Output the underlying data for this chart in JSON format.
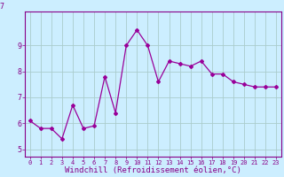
{
  "x": [
    0,
    1,
    2,
    3,
    4,
    5,
    6,
    7,
    8,
    9,
    10,
    11,
    12,
    13,
    14,
    15,
    16,
    17,
    18,
    19,
    20,
    21,
    22,
    23
  ],
  "y": [
    6.1,
    5.8,
    5.8,
    5.4,
    6.7,
    5.8,
    5.9,
    7.8,
    6.4,
    9.0,
    9.6,
    9.0,
    7.6,
    8.4,
    8.3,
    8.2,
    8.4,
    7.9,
    7.9,
    7.6,
    7.5,
    7.4,
    7.4,
    7.4
  ],
  "line_color": "#990099",
  "marker": "D",
  "marker_size": 2.0,
  "line_width": 0.9,
  "background_color": "#cceeff",
  "grid_color": "#aacccc",
  "xlabel": "Windchill (Refroidissement éolien,°C)",
  "xlabel_fontsize": 6.5,
  "ytick_labels": [
    "5",
    "6",
    "7",
    "8",
    "9"
  ],
  "yticks": [
    5,
    6,
    7,
    8,
    9
  ],
  "ylim": [
    4.7,
    10.3
  ],
  "xlim": [
    -0.5,
    23.5
  ],
  "xtick_fontsize": 5.0,
  "ytick_fontsize": 6.0,
  "tick_color": "#880088",
  "axis_color": "#880088",
  "top_label": "7"
}
